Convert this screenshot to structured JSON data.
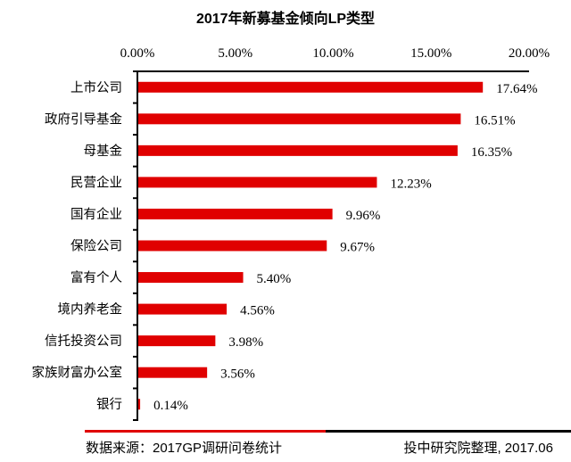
{
  "chart_data": {
    "type": "bar",
    "orientation": "horizontal",
    "title": "2017年新募基金倾向LP类型",
    "xlabel": "",
    "ylabel": "",
    "xlim": [
      0,
      20
    ],
    "x_ticks": [
      "0.00%",
      "5.00%",
      "10.00%",
      "15.00%",
      "20.00%"
    ],
    "x_tick_values": [
      0,
      5,
      10,
      15,
      20
    ],
    "x_axis_position": "top",
    "grid": false,
    "legend": null,
    "categories": [
      "上市公司",
      "政府引导基金",
      "母基金",
      "民营企业",
      "国有企业",
      "保险公司",
      "富有个人",
      "境内养老金",
      "信托投资公司",
      "家族财富办公室",
      "银行"
    ],
    "values": [
      17.64,
      16.51,
      16.35,
      12.23,
      9.96,
      9.67,
      5.4,
      4.56,
      3.98,
      3.56,
      0.14
    ],
    "data_labels": [
      "17.64%",
      "16.51%",
      "16.35%",
      "12.23%",
      "9.96%",
      "9.67%",
      "5.40%",
      "4.56%",
      "3.98%",
      "3.56%",
      "0.14%"
    ],
    "bar_color": "#e00000",
    "unit": "%"
  },
  "footer": {
    "source": "数据来源：2017GP调研问卷统计",
    "credit": "投中研究院整理, 2017.06",
    "accent_color": "#e00000",
    "line_color": "#000000"
  }
}
